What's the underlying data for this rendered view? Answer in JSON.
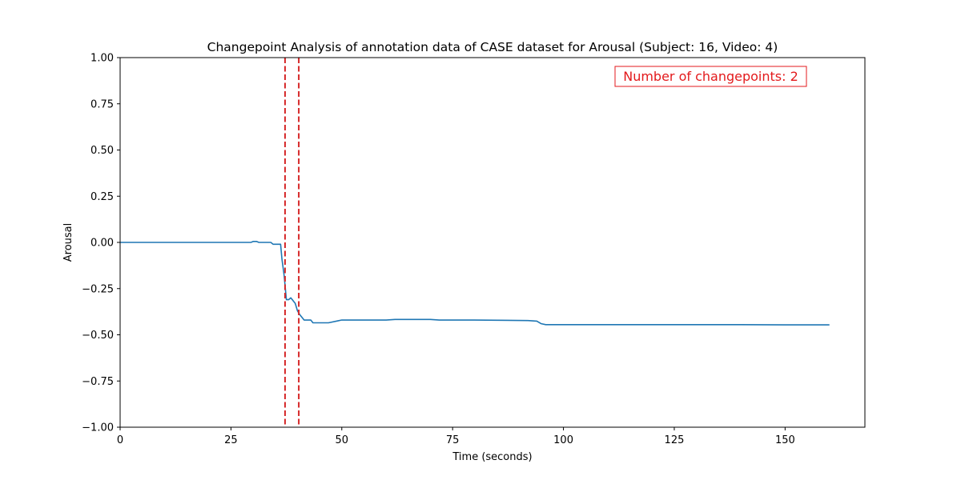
{
  "chart_data": {
    "type": "line",
    "title": "Changepoint Analysis of annotation data of CASE dataset for Arousal (Subject: 16, Video: 4)",
    "xlabel": "Time (seconds)",
    "ylabel": "Arousal",
    "xlim": [
      0,
      168
    ],
    "ylim": [
      -1.0,
      1.0
    ],
    "xticks": [
      0,
      25,
      50,
      75,
      100,
      125,
      150
    ],
    "xtick_labels": [
      "0",
      "25",
      "50",
      "75",
      "100",
      "125",
      "150"
    ],
    "yticks": [
      1.0,
      0.75,
      0.5,
      0.25,
      0.0,
      -0.25,
      -0.5,
      -0.75,
      -1.0
    ],
    "ytick_labels": [
      "1.00",
      "0.75",
      "0.50",
      "0.25",
      "0.00",
      "−0.25",
      "−0.50",
      "−0.75",
      "−1.00"
    ],
    "grid": false,
    "series": [
      {
        "color": "#1f77b4",
        "x": [
          0,
          29.5,
          30,
          30.8,
          31.3,
          34,
          34.5,
          36.2,
          36.5,
          37,
          37.5,
          38,
          38.5,
          39.5,
          40,
          40.5,
          41.5,
          43,
          43.5,
          47,
          49,
          50,
          60,
          62,
          70,
          72,
          73,
          80,
          92,
          94,
          95,
          96,
          100,
          110,
          125,
          140,
          150,
          160
        ],
        "y": [
          0.0,
          0.0,
          0.005,
          0.005,
          0.0,
          0.0,
          -0.01,
          -0.01,
          -0.09,
          -0.18,
          -0.31,
          -0.31,
          -0.3,
          -0.33,
          -0.37,
          -0.39,
          -0.42,
          -0.42,
          -0.435,
          -0.435,
          -0.425,
          -0.42,
          -0.42,
          -0.417,
          -0.417,
          -0.42,
          -0.42,
          -0.42,
          -0.423,
          -0.426,
          -0.44,
          -0.445,
          -0.445,
          -0.445,
          -0.445,
          -0.445,
          -0.446,
          -0.446
        ]
      }
    ],
    "changepoints": [
      37.2,
      40.3
    ],
    "changepoint_color": "#d62728",
    "annotation": {
      "text": "Number of changepoints: 2",
      "color": "#e31a1c",
      "placement": "top-right"
    }
  }
}
